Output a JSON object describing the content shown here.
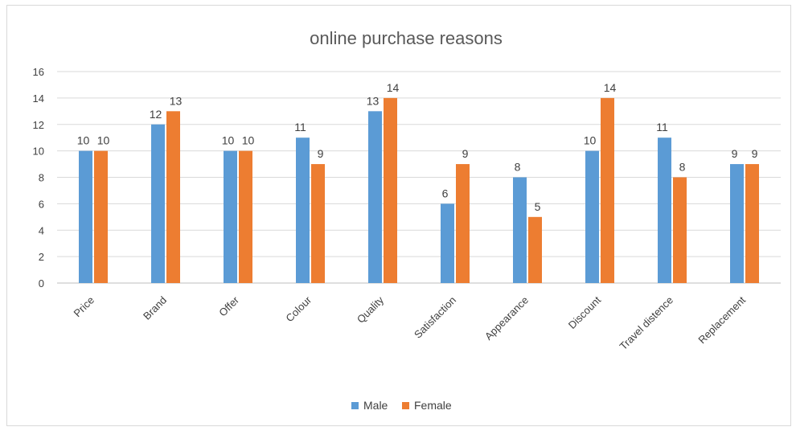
{
  "chart_data": {
    "type": "bar",
    "title": "online purchase reasons",
    "categories": [
      "Price",
      "Brand",
      "Offer",
      "Colour",
      "Quality",
      "Satisfaction",
      "Appearance",
      "Discount",
      "Travel distence",
      "Replacement"
    ],
    "series": [
      {
        "name": "Male",
        "color": "#5b9bd5",
        "values": [
          10,
          12,
          10,
          11,
          13,
          6,
          8,
          10,
          11,
          9
        ]
      },
      {
        "name": "Female",
        "color": "#ed7d31",
        "values": [
          10,
          13,
          10,
          9,
          14,
          9,
          5,
          14,
          8,
          9
        ]
      }
    ],
    "ylim": [
      0,
      16
    ],
    "yticks": [
      0,
      2,
      4,
      6,
      8,
      10,
      12,
      14,
      16
    ],
    "grid": true,
    "legend_position": "bottom"
  }
}
